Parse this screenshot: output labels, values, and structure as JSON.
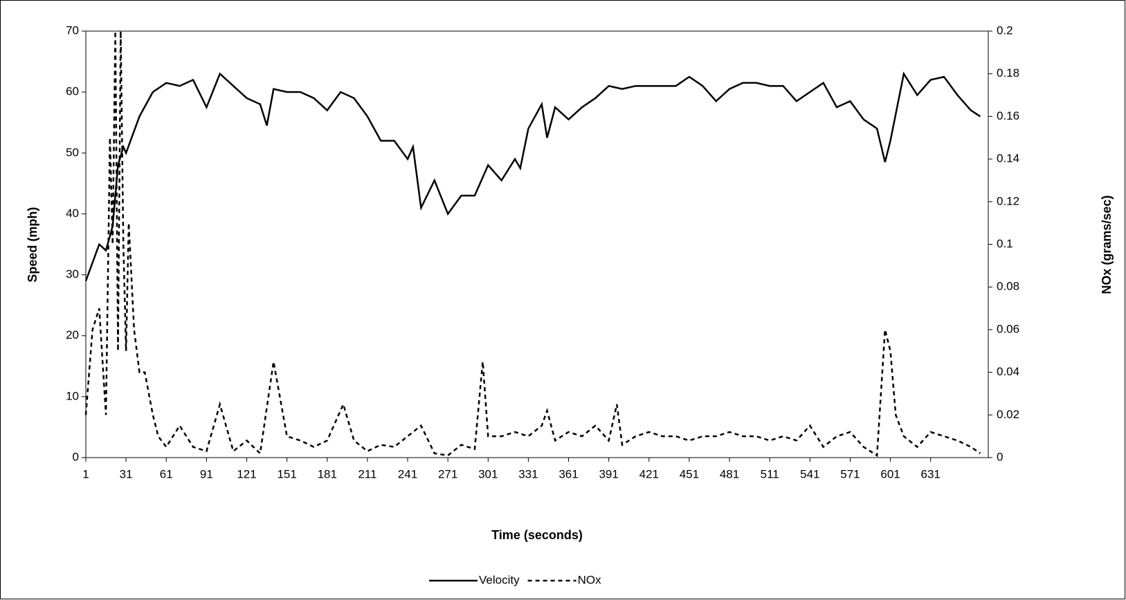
{
  "chart_data": {
    "type": "line",
    "x_label": "Time (seconds)",
    "y_label": "Speed (mph)",
    "y2_label": "NOx (grams/sec)",
    "xlim": [
      1,
      674
    ],
    "xticks": [
      1,
      31,
      61,
      91,
      121,
      151,
      181,
      211,
      241,
      271,
      301,
      331,
      361,
      391,
      421,
      451,
      481,
      511,
      541,
      571,
      601,
      631
    ],
    "ylim": [
      0,
      70
    ],
    "yticks": [
      0,
      10,
      20,
      30,
      40,
      50,
      60,
      70
    ],
    "y2lim": [
      0,
      0.2
    ],
    "y2ticks": [
      0,
      0.02,
      0.04,
      0.06,
      0.08,
      0.1,
      0.12,
      0.14,
      0.16,
      0.18,
      0.2
    ],
    "legend": "bottom",
    "series": [
      {
        "name": "Velocity",
        "color": "#000000",
        "dash": "solid",
        "x": [
          1,
          11,
          16,
          21,
          25,
          29,
          31,
          41,
          51,
          61,
          71,
          81,
          91,
          101,
          111,
          121,
          131,
          136,
          141,
          151,
          161,
          171,
          181,
          191,
          201,
          211,
          221,
          231,
          241,
          245,
          251,
          261,
          271,
          281,
          291,
          301,
          311,
          321,
          325,
          331,
          341,
          345,
          351,
          361,
          371,
          381,
          391,
          401,
          411,
          421,
          431,
          441,
          451,
          461,
          471,
          481,
          491,
          501,
          511,
          521,
          531,
          541,
          551,
          561,
          571,
          581,
          591,
          597,
          601,
          611,
          621,
          631,
          641,
          651,
          661,
          668
        ],
        "values": [
          29,
          35,
          34,
          38,
          48,
          51,
          50,
          56,
          60,
          61.5,
          61,
          62,
          57.5,
          63,
          61,
          59,
          58,
          54.5,
          60.5,
          60,
          60,
          59,
          57,
          60,
          59,
          56,
          52,
          52,
          49,
          51,
          41,
          45.5,
          40,
          43,
          43,
          48,
          45.5,
          49,
          47.5,
          54,
          58,
          52.5,
          57.5,
          55.5,
          57.5,
          59,
          61,
          60.5,
          61,
          61,
          61,
          61,
          62.5,
          61,
          58.5,
          60.5,
          61.5,
          61.5,
          61,
          61,
          58.5,
          60,
          61.5,
          57.5,
          58.5,
          55.5,
          54,
          48.5,
          52,
          63,
          59.5,
          62,
          62.5,
          59.5,
          57,
          56
        ]
      },
      {
        "name": "NOx",
        "color": "#000000",
        "dash": "dashed",
        "axis": "y2",
        "x": [
          1,
          6,
          11,
          16,
          19,
          21,
          23,
          25,
          27,
          29,
          31,
          33,
          37,
          41,
          45,
          51,
          55,
          61,
          71,
          81,
          91,
          101,
          111,
          121,
          131,
          141,
          151,
          161,
          171,
          181,
          193,
          201,
          211,
          221,
          231,
          241,
          251,
          261,
          271,
          281,
          291,
          297,
          301,
          311,
          321,
          331,
          341,
          345,
          351,
          361,
          371,
          381,
          391,
          397,
          401,
          411,
          421,
          431,
          441,
          451,
          461,
          471,
          481,
          491,
          501,
          511,
          521,
          531,
          541,
          551,
          561,
          571,
          581,
          591,
          597,
          601,
          605,
          611,
          621,
          631,
          641,
          651,
          661,
          668
        ],
        "values": [
          0.02,
          0.06,
          0.07,
          0.02,
          0.15,
          0.1,
          0.2,
          0.05,
          0.2,
          0.1,
          0.05,
          0.11,
          0.06,
          0.04,
          0.04,
          0.02,
          0.01,
          0.005,
          0.015,
          0.005,
          0.003,
          0.025,
          0.003,
          0.008,
          0.002,
          0.045,
          0.01,
          0.008,
          0.005,
          0.008,
          0.025,
          0.008,
          0.003,
          0.006,
          0.005,
          0.01,
          0.015,
          0.002,
          0.001,
          0.006,
          0.004,
          0.045,
          0.01,
          0.01,
          0.012,
          0.01,
          0.015,
          0.022,
          0.008,
          0.012,
          0.01,
          0.015,
          0.008,
          0.025,
          0.006,
          0.01,
          0.012,
          0.01,
          0.01,
          0.008,
          0.01,
          0.01,
          0.012,
          0.01,
          0.01,
          0.008,
          0.01,
          0.008,
          0.015,
          0.005,
          0.01,
          0.012,
          0.005,
          0.001,
          0.06,
          0.05,
          0.02,
          0.01,
          0.005,
          0.012,
          0.01,
          0.008,
          0.005,
          0.002
        ]
      }
    ]
  }
}
